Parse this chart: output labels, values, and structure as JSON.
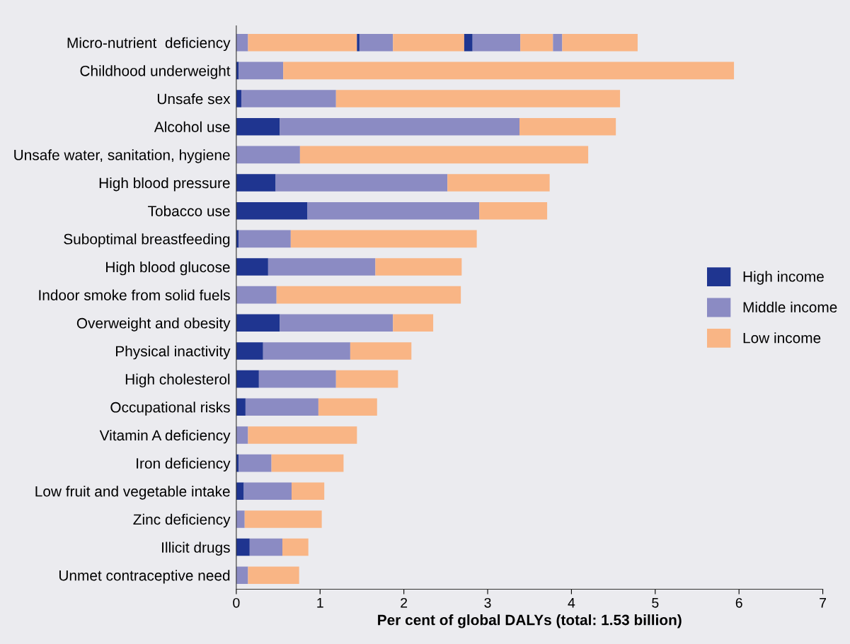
{
  "chart_data": {
    "type": "bar",
    "orientation": "horizontal",
    "stacked": true,
    "xlabel": "Per cent of global DALYs (total: 1.53 billion)",
    "categories": [
      "Micro-nutrient  deficiency",
      "Childhood underweight",
      "Unsafe sex",
      "Alcohol use",
      "Unsafe water, sanitation, hygiene",
      "High blood pressure",
      "Tobacco use",
      "Suboptimal breastfeeding",
      "High blood glucose",
      "Indoor smoke from solid fuels",
      "Overweight and obesity",
      "Physical inactivity",
      "High cholesterol",
      "Occupational risks",
      "Vitamin A deficiency",
      "Iron deficiency",
      "Low fruit and vegetable intake",
      "Zinc deficiency",
      "Illicit drugs",
      "Unmet contraceptive need"
    ],
    "series": [
      {
        "name": "High income",
        "color": "#1f3590",
        "values": [
          0,
          0.03,
          0.06,
          0.52,
          0,
          0.47,
          0.85,
          0.03,
          0.38,
          0,
          0.52,
          0.32,
          0.27,
          0.11,
          0,
          0.03,
          0.09,
          0,
          0.16,
          0
        ]
      },
      {
        "name": "Middle income",
        "color": "#8b8bc3",
        "values": [
          0.14,
          0.53,
          1.13,
          2.86,
          0.76,
          2.05,
          2.05,
          0.62,
          1.28,
          0.48,
          1.35,
          1.04,
          0.92,
          0.87,
          0.14,
          0.39,
          0.57,
          0.1,
          0.39,
          0.14
        ]
      },
      {
        "name": "Low income",
        "color": "#f9b585",
        "values": [
          1.3,
          5.38,
          3.39,
          1.15,
          3.44,
          1.22,
          0.81,
          2.22,
          1.03,
          2.2,
          0.48,
          0.73,
          0.74,
          0.7,
          1.3,
          0.86,
          0.39,
          0.92,
          0.31,
          0.61
        ]
      },
      {
        "color": "#1f3590",
        "values": [
          0.03,
          null,
          null,
          null,
          null,
          null,
          null,
          null,
          null,
          null,
          null,
          null,
          null,
          null,
          null,
          null,
          null,
          null,
          null,
          null
        ]
      },
      {
        "color": "#8b8bc3",
        "values": [
          0.4,
          null,
          null,
          null,
          null,
          null,
          null,
          null,
          null,
          null,
          null,
          null,
          null,
          null,
          null,
          null,
          null,
          null,
          null,
          null
        ]
      },
      {
        "color": "#f9b585",
        "values": [
          0.85,
          null,
          null,
          null,
          null,
          null,
          null,
          null,
          null,
          null,
          null,
          null,
          null,
          null,
          null,
          null,
          null,
          null,
          null,
          null
        ]
      },
      {
        "color": "#1f3590",
        "values": [
          0.1,
          null,
          null,
          null,
          null,
          null,
          null,
          null,
          null,
          null,
          null,
          null,
          null,
          null,
          null,
          null,
          null,
          null,
          null,
          null
        ]
      },
      {
        "color": "#8b8bc3",
        "values": [
          0.57,
          null,
          null,
          null,
          null,
          null,
          null,
          null,
          null,
          null,
          null,
          null,
          null,
          null,
          null,
          null,
          null,
          null,
          null,
          null
        ]
      },
      {
        "color": "#f9b585",
        "values": [
          0.39,
          null,
          null,
          null,
          null,
          null,
          null,
          null,
          null,
          null,
          null,
          null,
          null,
          null,
          null,
          null,
          null,
          null,
          null,
          null
        ]
      },
      {
        "color": "#8b8bc3",
        "values": [
          0.11,
          null,
          null,
          null,
          null,
          null,
          null,
          null,
          null,
          null,
          null,
          null,
          null,
          null,
          null,
          null,
          null,
          null,
          null,
          null
        ]
      },
      {
        "color": "#f9b585",
        "values": [
          0.9,
          null,
          null,
          null,
          null,
          null,
          null,
          null,
          null,
          null,
          null,
          null,
          null,
          null,
          null,
          null,
          null,
          null,
          null,
          null
        ]
      }
    ],
    "xlim": [
      0,
      7
    ],
    "xticks": [
      0,
      1,
      2,
      3,
      4,
      5,
      6,
      7
    ],
    "grid": false,
    "legend": "right"
  }
}
